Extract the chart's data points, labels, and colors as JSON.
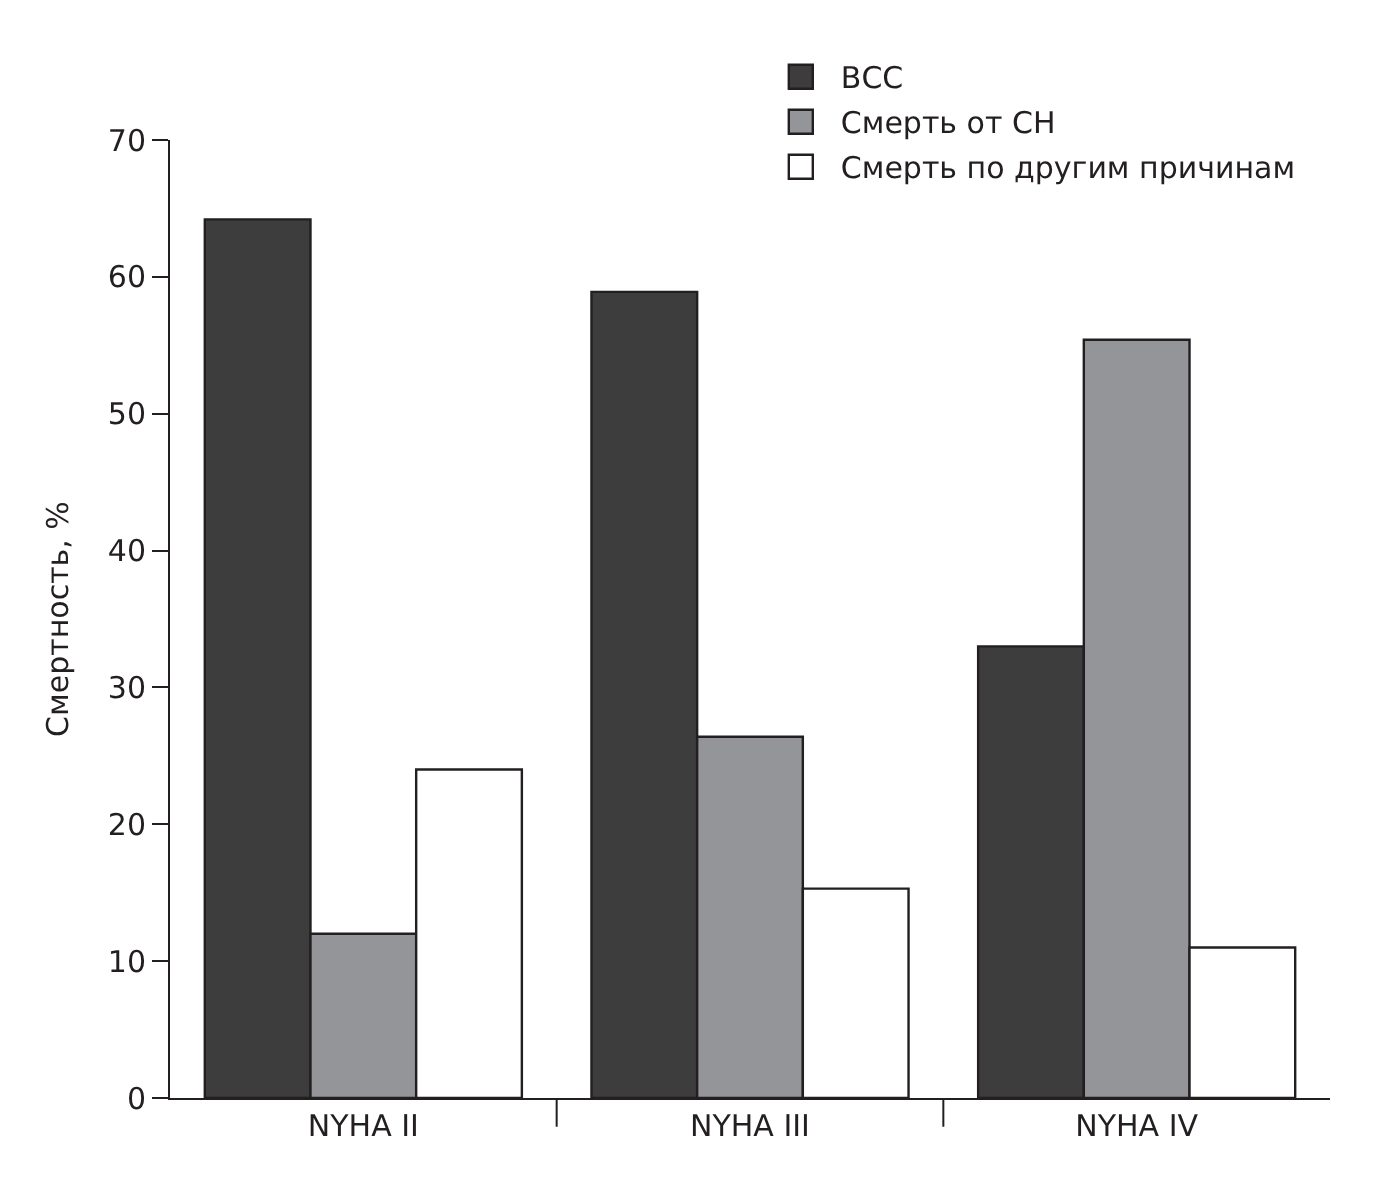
{
  "chart_data": {
    "type": "bar",
    "ylabel": "Смертность, %",
    "categories": [
      "NYHA II",
      "NYHA III",
      "NYHA IV"
    ],
    "series": [
      {
        "name": "ВСС",
        "color": "#3d3d3d",
        "values": [
          64.2,
          58.9,
          33.0
        ]
      },
      {
        "name": "Смерть от СН",
        "color": "#939598",
        "values": [
          12.0,
          26.4,
          55.4
        ]
      },
      {
        "name": "Смерть по другим причинам",
        "color": "#ffffff",
        "values": [
          24.0,
          15.3,
          11.0
        ]
      }
    ],
    "ylim": [
      0,
      70
    ],
    "yticks": [
      0,
      10,
      20,
      30,
      40,
      50,
      60,
      70
    ],
    "legend": "top right"
  }
}
